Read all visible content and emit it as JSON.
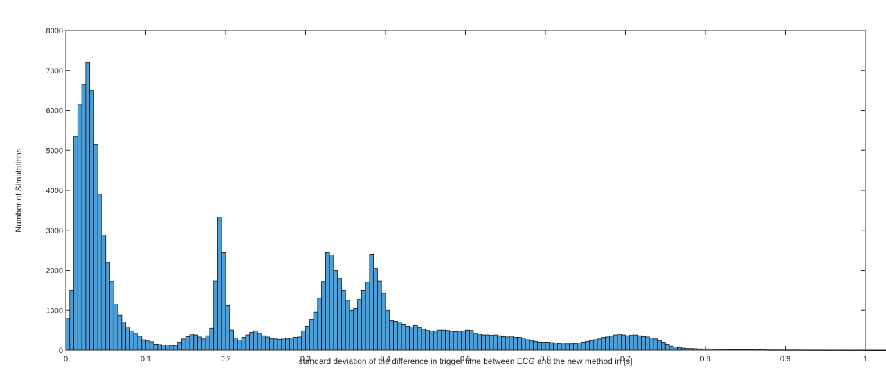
{
  "chart_data": {
    "type": "bar",
    "title": "",
    "xlabel": "standard deviation of the difference in trigger time between ECG and the new method in [s]",
    "ylabel": "Number of Simulations",
    "xlim": [
      0,
      1
    ],
    "ylim": [
      0,
      8000
    ],
    "grid": false,
    "bar_color": "#4f9fd6",
    "edge_color": "#111111",
    "x_ticks": [
      "0",
      "0.1",
      "0.2",
      "0.3",
      "0.4",
      "0.5",
      "0.6",
      "0.7",
      "0.8",
      "0.9",
      "1"
    ],
    "y_ticks": [
      "0",
      "1000",
      "2000",
      "3000",
      "4000",
      "5000",
      "6000",
      "7000",
      "8000"
    ],
    "bin_width": 0.005,
    "bin_start": 0,
    "values": [
      800,
      1500,
      5350,
      6150,
      6650,
      7200,
      6500,
      5150,
      3900,
      2880,
      2200,
      1720,
      1150,
      880,
      700,
      580,
      480,
      420,
      350,
      260,
      230,
      210,
      150,
      140,
      130,
      130,
      110,
      120,
      200,
      280,
      340,
      400,
      380,
      330,
      280,
      360,
      550,
      1730,
      3330,
      2450,
      1120,
      500,
      300,
      250,
      320,
      380,
      440,
      480,
      420,
      360,
      330,
      290,
      280,
      270,
      300,
      280,
      300,
      320,
      330,
      480,
      600,
      770,
      950,
      1300,
      1720,
      2450,
      2380,
      2000,
      1800,
      1500,
      1250,
      1000,
      1050,
      1270,
      1500,
      1700,
      2400,
      2050,
      1730,
      1420,
      1000,
      740,
      720,
      700,
      650,
      600,
      580,
      620,
      560,
      520,
      490,
      480,
      470,
      500,
      500,
      490,
      470,
      460,
      470,
      480,
      500,
      490,
      420,
      400,
      380,
      380,
      370,
      380,
      360,
      340,
      330,
      350,
      320,
      320,
      300,
      260,
      240,
      220,
      200,
      200,
      200,
      190,
      180,
      170,
      180,
      160,
      160,
      170,
      180,
      200,
      220,
      240,
      260,
      280,
      320,
      330,
      350,
      380,
      400,
      380,
      360,
      370,
      380,
      360,
      340,
      330,
      300,
      280,
      240,
      200,
      150,
      100,
      80,
      60,
      50,
      40,
      40,
      35,
      30,
      30,
      30,
      25,
      25,
      20,
      20,
      20,
      15,
      15,
      10,
      12,
      10,
      12,
      8,
      10,
      8,
      6,
      6,
      5,
      6,
      5,
      5,
      4,
      5,
      4,
      4,
      3,
      3,
      4,
      3,
      3,
      2,
      2,
      3,
      2,
      2,
      2,
      1,
      2,
      1,
      2,
      1,
      1,
      1,
      1,
      1,
      1,
      1,
      1,
      1,
      1,
      1,
      0,
      1,
      0,
      1,
      0,
      1,
      0,
      0,
      1,
      0,
      0,
      1,
      0,
      0,
      1,
      0,
      0,
      0,
      1,
      0,
      0,
      1,
      0,
      0,
      0,
      1,
      0,
      0,
      0,
      0,
      1,
      0,
      0,
      0,
      0,
      1,
      0,
      0,
      0,
      1,
      0,
      0
    ]
  }
}
